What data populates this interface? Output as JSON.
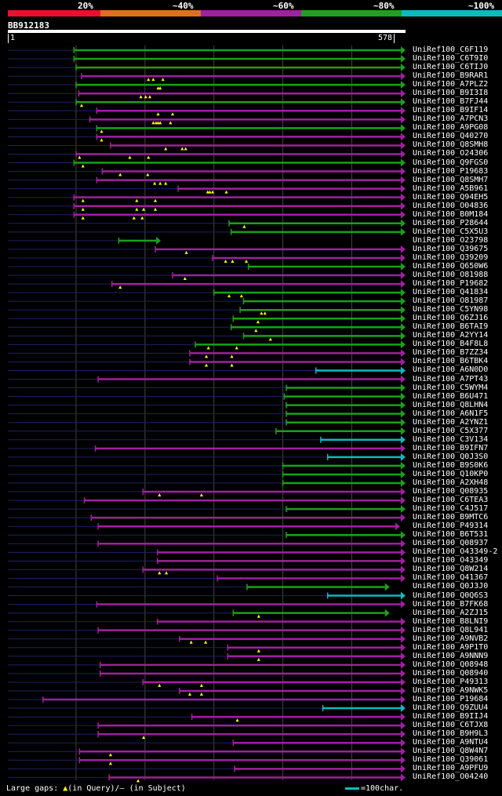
{
  "scale": {
    "labels": [
      "20%",
      "~40%",
      "~60%",
      "~80%",
      "~100%"
    ],
    "colors": [
      "#e8102c",
      "#e07020",
      "#a020a0",
      "#20a020",
      "#10b8c0"
    ]
  },
  "query": {
    "name": "BB912183",
    "start": "1",
    "end": "578",
    "length": 578
  },
  "colors": {
    "green": "#1aa01a",
    "magenta": "#a020a0",
    "cyan": "#10b8c0",
    "dark": "#202060",
    "gap_marker": "#ffff00"
  },
  "hits": [
    {
      "name": "UniRef100_C6F119",
      "s": 97,
      "e": 578,
      "c": "green",
      "gaps": []
    },
    {
      "name": "UniRef100_C6T9I0",
      "s": 97,
      "e": 578,
      "c": "green",
      "gaps": []
    },
    {
      "name": "UniRef100_C6TIJ0",
      "s": 100,
      "e": 578,
      "c": "green",
      "gaps": []
    },
    {
      "name": "UniRef100_B9RAR1",
      "s": 108,
      "e": 578,
      "c": "magenta",
      "gaps": [
        205,
        212,
        226
      ]
    },
    {
      "name": "UniRef100_A7PLZ2",
      "s": 100,
      "e": 578,
      "c": "green",
      "gaps": [
        219,
        222
      ]
    },
    {
      "name": "UniRef100_B9I3I8",
      "s": 104,
      "e": 578,
      "c": "magenta",
      "gaps": [
        194,
        201,
        207
      ]
    },
    {
      "name": "UniRef100_B7FJ44",
      "s": 100,
      "e": 578,
      "c": "green",
      "gaps": [
        108
      ]
    },
    {
      "name": "UniRef100_B9IF14",
      "s": 130,
      "e": 578,
      "c": "magenta",
      "gaps": [
        219,
        240
      ]
    },
    {
      "name": "UniRef100_A7PCN3",
      "s": 120,
      "e": 578,
      "c": "magenta",
      "gaps": [
        212,
        216,
        219,
        222,
        237
      ]
    },
    {
      "name": "UniRef100_A9PG08",
      "s": 130,
      "e": 578,
      "c": "green",
      "gaps": [
        137
      ]
    },
    {
      "name": "UniRef100_Q40270",
      "s": 130,
      "e": 578,
      "c": "magenta",
      "gaps": [
        137
      ]
    },
    {
      "name": "UniRef100_Q8SMH8",
      "s": 150,
      "e": 578,
      "c": "magenta",
      "gaps": [
        230,
        254,
        259
      ]
    },
    {
      "name": "UniRef100_O24306",
      "s": 100,
      "e": 578,
      "c": "magenta",
      "gaps": [
        105,
        178,
        205
      ]
    },
    {
      "name": "UniRef100_Q9FGS0",
      "s": 97,
      "e": 578,
      "c": "green",
      "gaps": [
        110
      ]
    },
    {
      "name": "UniRef100_P19683",
      "s": 138,
      "e": 578,
      "c": "magenta",
      "gaps": [
        164,
        204
      ]
    },
    {
      "name": "UniRef100_Q8SMH7",
      "s": 130,
      "e": 578,
      "c": "magenta",
      "gaps": [
        214,
        222,
        230
      ]
    },
    {
      "name": "UniRef100_A5B961",
      "s": 248,
      "e": 578,
      "c": "magenta",
      "gaps": [
        291,
        294,
        298,
        318
      ]
    },
    {
      "name": "UniRef100_Q94EH5",
      "s": 97,
      "e": 578,
      "c": "magenta",
      "gaps": [
        110,
        188,
        215
      ]
    },
    {
      "name": "UniRef100_O04836",
      "s": 97,
      "e": 578,
      "c": "magenta",
      "gaps": [
        110,
        188,
        198,
        215
      ]
    },
    {
      "name": "UniRef100_B0M184",
      "s": 97,
      "e": 578,
      "c": "magenta",
      "gaps": [
        110,
        184,
        196
      ]
    },
    {
      "name": "UniRef100_P28644",
      "s": 322,
      "e": 578,
      "c": "green",
      "gaps": [
        344
      ]
    },
    {
      "name": "UniRef100_C5X5U3",
      "s": 325,
      "e": 578,
      "c": "green",
      "gaps": []
    },
    {
      "name": "UniRef100_O23798",
      "s": 162,
      "e": 223,
      "c": "green",
      "gaps": []
    },
    {
      "name": "UniRef100_Q39675",
      "s": 215,
      "e": 578,
      "c": "magenta",
      "gaps": [
        260
      ]
    },
    {
      "name": "UniRef100_Q39209",
      "s": 298,
      "e": 578,
      "c": "magenta",
      "gaps": [
        317,
        327,
        347
      ]
    },
    {
      "name": "UniRef100_Q650W6",
      "s": 350,
      "e": 578,
      "c": "green",
      "gaps": []
    },
    {
      "name": "UniRef100_O81988",
      "s": 240,
      "e": 578,
      "c": "magenta",
      "gaps": [
        258
      ]
    },
    {
      "name": "UniRef100_P19682",
      "s": 152,
      "e": 578,
      "c": "magenta",
      "gaps": [
        164
      ]
    },
    {
      "name": "UniRef100_Q41834",
      "s": 300,
      "e": 578,
      "c": "green",
      "gaps": [
        322,
        340
      ]
    },
    {
      "name": "UniRef100_O81987",
      "s": 343,
      "e": 578,
      "c": "green",
      "gaps": []
    },
    {
      "name": "UniRef100_C5YN98",
      "s": 338,
      "e": 578,
      "c": "green",
      "gaps": [
        369,
        374
      ]
    },
    {
      "name": "UniRef100_Q6ZJ16",
      "s": 328,
      "e": 578,
      "c": "green",
      "gaps": [
        364
      ]
    },
    {
      "name": "UniRef100_B6TAI9",
      "s": 325,
      "e": 578,
      "c": "green",
      "gaps": [
        361
      ]
    },
    {
      "name": "UniRef100_A2YY14",
      "s": 343,
      "e": 578,
      "c": "green",
      "gaps": [
        382
      ]
    },
    {
      "name": "UniRef100_B4F8L8",
      "s": 273,
      "e": 578,
      "c": "green",
      "gaps": [
        292,
        333
      ]
    },
    {
      "name": "UniRef100_B7ZZ34",
      "s": 265,
      "e": 578,
      "c": "magenta",
      "gaps": [
        289,
        326
      ]
    },
    {
      "name": "UniRef100_B6TBK4",
      "s": 265,
      "e": 578,
      "c": "magenta",
      "gaps": [
        289,
        326
      ]
    },
    {
      "name": "UniRef100_A6N0D0",
      "s": 448,
      "e": 578,
      "c": "cyan",
      "gaps": []
    },
    {
      "name": "UniRef100_A7PT43",
      "s": 132,
      "e": 578,
      "c": "magenta",
      "gaps": []
    },
    {
      "name": "UniRef100_C5WYM4",
      "s": 405,
      "e": 578,
      "c": "green",
      "gaps": []
    },
    {
      "name": "UniRef100_B6U471",
      "s": 402,
      "e": 578,
      "c": "green",
      "gaps": []
    },
    {
      "name": "UniRef100_Q8LHN4",
      "s": 405,
      "e": 578,
      "c": "green",
      "gaps": []
    },
    {
      "name": "UniRef100_A6N1F5",
      "s": 405,
      "e": 578,
      "c": "green",
      "gaps": []
    },
    {
      "name": "UniRef100_A2YNZ1",
      "s": 405,
      "e": 578,
      "c": "green",
      "gaps": []
    },
    {
      "name": "UniRef100_C5X377",
      "s": 390,
      "e": 578,
      "c": "green",
      "gaps": []
    },
    {
      "name": "UniRef100_C3V134",
      "s": 455,
      "e": 578,
      "c": "cyan",
      "gaps": []
    },
    {
      "name": "UniRef100_B9IFN7",
      "s": 128,
      "e": 578,
      "c": "magenta",
      "gaps": []
    },
    {
      "name": "UniRef100_Q0J3S0",
      "s": 465,
      "e": 578,
      "c": "cyan",
      "gaps": []
    },
    {
      "name": "UniRef100_B9S0K6",
      "s": 400,
      "e": 578,
      "c": "green",
      "gaps": []
    },
    {
      "name": "UniRef100_Q10KP0",
      "s": 400,
      "e": 578,
      "c": "green",
      "gaps": []
    },
    {
      "name": "UniRef100_A2XH48",
      "s": 400,
      "e": 578,
      "c": "green",
      "gaps": []
    },
    {
      "name": "UniRef100_Q08935",
      "s": 197,
      "e": 578,
      "c": "magenta",
      "gaps": [
        221,
        282
      ]
    },
    {
      "name": "UniRef100_C6TEA3",
      "s": 112,
      "e": 578,
      "c": "magenta",
      "gaps": []
    },
    {
      "name": "UniRef100_C4J517",
      "s": 405,
      "e": 578,
      "c": "green",
      "gaps": []
    },
    {
      "name": "UniRef100_B9MTC6",
      "s": 122,
      "e": 578,
      "c": "magenta",
      "gaps": []
    },
    {
      "name": "UniRef100_P49314",
      "s": 132,
      "e": 570,
      "c": "magenta",
      "gaps": []
    },
    {
      "name": "UniRef100_B6T531",
      "s": 405,
      "e": 578,
      "c": "green",
      "gaps": []
    },
    {
      "name": "UniRef100_Q08937",
      "s": 132,
      "e": 578,
      "c": "magenta",
      "gaps": []
    },
    {
      "name": "UniRef100_O43349-2",
      "s": 218,
      "e": 578,
      "c": "magenta",
      "gaps": []
    },
    {
      "name": "UniRef100_O43349",
      "s": 218,
      "e": 578,
      "c": "magenta",
      "gaps": []
    },
    {
      "name": "UniRef100_Q8W214",
      "s": 197,
      "e": 578,
      "c": "magenta",
      "gaps": [
        221,
        231
      ]
    },
    {
      "name": "UniRef100_Q41367",
      "s": 305,
      "e": 578,
      "c": "magenta",
      "gaps": []
    },
    {
      "name": "UniRef100_Q0J3J0",
      "s": 348,
      "e": 555,
      "c": "green",
      "gaps": []
    },
    {
      "name": "UniRef100_Q0Q6S3",
      "s": 465,
      "e": 578,
      "c": "cyan",
      "gaps": []
    },
    {
      "name": "UniRef100_B7FK68",
      "s": 130,
      "e": 578,
      "c": "magenta",
      "gaps": []
    },
    {
      "name": "UniRef100_A2ZJ15",
      "s": 328,
      "e": 555,
      "c": "green",
      "gaps": [
        365
      ]
    },
    {
      "name": "UniRef100_B8LNI9",
      "s": 218,
      "e": 578,
      "c": "magenta",
      "gaps": []
    },
    {
      "name": "UniRef100_Q8L941",
      "s": 132,
      "e": 578,
      "c": "magenta",
      "gaps": []
    },
    {
      "name": "UniRef100_A9NVB2",
      "s": 250,
      "e": 578,
      "c": "magenta",
      "gaps": [
        267,
        288
      ]
    },
    {
      "name": "UniRef100_A9P1T0",
      "s": 320,
      "e": 578,
      "c": "magenta",
      "gaps": [
        365
      ]
    },
    {
      "name": "UniRef100_A9NNN9",
      "s": 320,
      "e": 578,
      "c": "magenta",
      "gaps": [
        365
      ]
    },
    {
      "name": "UniRef100_Q08948",
      "s": 135,
      "e": 578,
      "c": "magenta",
      "gaps": []
    },
    {
      "name": "UniRef100_Q08940",
      "s": 135,
      "e": 578,
      "c": "magenta",
      "gaps": []
    },
    {
      "name": "UniRef100_P49313",
      "s": 197,
      "e": 578,
      "c": "magenta",
      "gaps": [
        221,
        282
      ]
    },
    {
      "name": "UniRef100_A9NWK5",
      "s": 250,
      "e": 578,
      "c": "magenta",
      "gaps": [
        265,
        282
      ]
    },
    {
      "name": "UniRef100_P19684",
      "s": 52,
      "e": 578,
      "c": "magenta",
      "gaps": []
    },
    {
      "name": "UniRef100_Q9ZUU4",
      "s": 458,
      "e": 578,
      "c": "cyan",
      "gaps": []
    },
    {
      "name": "UniRef100_B9IIJ4",
      "s": 268,
      "e": 578,
      "c": "magenta",
      "gaps": [
        334
      ]
    },
    {
      "name": "UniRef100_C6TJX8",
      "s": 132,
      "e": 578,
      "c": "magenta",
      "gaps": []
    },
    {
      "name": "UniRef100_B9H9L3",
      "s": 132,
      "e": 578,
      "c": "magenta",
      "gaps": [
        198
      ]
    },
    {
      "name": "UniRef100_A9NTU4",
      "s": 328,
      "e": 578,
      "c": "magenta",
      "gaps": []
    },
    {
      "name": "UniRef100_Q8W4N7",
      "s": 105,
      "e": 578,
      "c": "magenta",
      "gaps": [
        150
      ]
    },
    {
      "name": "UniRef100_Q39061",
      "s": 105,
      "e": 578,
      "c": "magenta",
      "gaps": [
        150
      ]
    },
    {
      "name": "UniRef100_A9PFU9",
      "s": 330,
      "e": 578,
      "c": "magenta",
      "gaps": []
    },
    {
      "name": "UniRef100_O04240",
      "s": 148,
      "e": 578,
      "c": "magenta",
      "gaps": [
        190
      ]
    }
  ],
  "legend": {
    "prefix": "Large gaps: ",
    "tri": "▲",
    "query_text": "(in Query)/",
    "dash": "–",
    "subject_text": " (in Subject)",
    "scale_text": "=100char."
  }
}
